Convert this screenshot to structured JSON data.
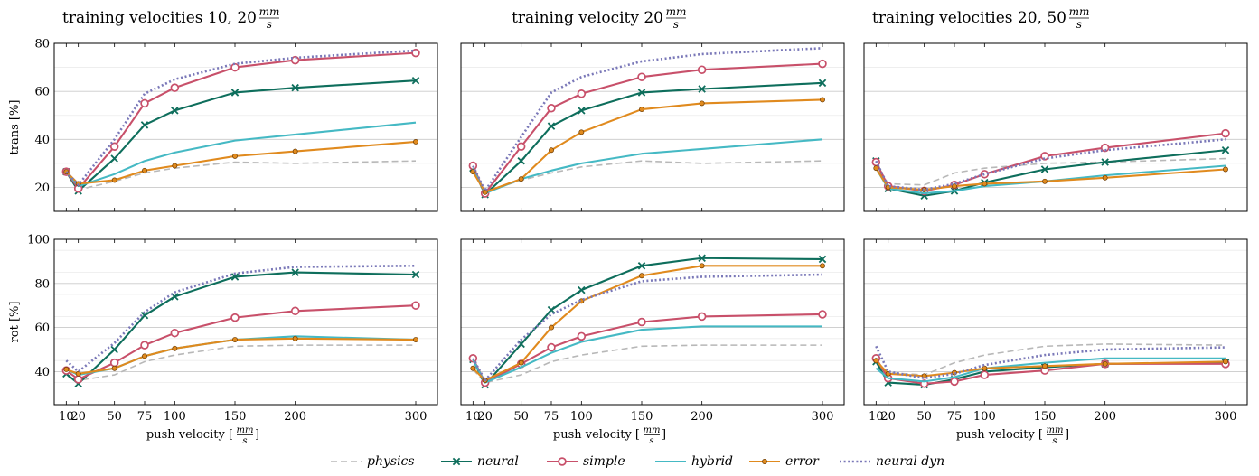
{
  "x_ticks": [
    10,
    20,
    50,
    75,
    100,
    150,
    200,
    300
  ],
  "x_label": "push velocity",
  "x_unit": {
    "num": "mm",
    "den": "s"
  },
  "column_titles": [
    {
      "text": "training velocities 10, 20",
      "num": "mm",
      "den": "s"
    },
    {
      "text": "training velocity 20",
      "num": "mm",
      "den": "s"
    },
    {
      "text": "training velocities 20, 50",
      "num": "mm",
      "den": "s"
    }
  ],
  "rows": [
    {
      "ylabel": "trans [%]",
      "ylim": [
        10,
        80
      ],
      "yticks": [
        20,
        40,
        60,
        80
      ]
    },
    {
      "ylabel": "rot [%]",
      "ylim": [
        25,
        100
      ],
      "yticks": [
        40,
        60,
        80,
        100
      ]
    }
  ],
  "legend": [
    {
      "name": "physics",
      "color": "#b8b8b8",
      "style": "dashed",
      "marker": "none"
    },
    {
      "name": "neural",
      "color": "#0e6e5c",
      "style": "solid",
      "marker": "x"
    },
    {
      "name": "simple",
      "color": "#c8506a",
      "style": "solid",
      "marker": "circle"
    },
    {
      "name": "hybrid",
      "color": "#45b9c4",
      "style": "solid",
      "marker": "none"
    },
    {
      "name": "error",
      "color": "#e08a1e",
      "style": "solid",
      "marker": "dot"
    },
    {
      "name": "neural dyn",
      "color": "#7a78b8",
      "style": "dotted",
      "marker": "none"
    }
  ],
  "chart_data": [
    {
      "type": "line",
      "panel": "trans-10-20",
      "x": [
        10,
        20,
        50,
        75,
        100,
        150,
        200,
        300
      ],
      "series": [
        {
          "name": "physics",
          "values": [
            26.5,
            19,
            22.5,
            26,
            28,
            30.5,
            30,
            31
          ]
        },
        {
          "name": "neural",
          "values": [
            26.5,
            18.5,
            32,
            46,
            52,
            59.5,
            61.5,
            64.5
          ]
        },
        {
          "name": "simple",
          "values": [
            26.5,
            19.5,
            37,
            55,
            61.5,
            70,
            73,
            76
          ]
        },
        {
          "name": "hybrid",
          "values": [
            26.5,
            20.5,
            25.5,
            31,
            34.5,
            39.5,
            42,
            47
          ]
        },
        {
          "name": "error",
          "values": [
            26.5,
            21.5,
            23,
            27,
            29,
            33,
            35,
            39
          ]
        },
        {
          "name": "neural dyn",
          "values": [
            26.5,
            21,
            40,
            59,
            65,
            71.5,
            74,
            77
          ]
        }
      ]
    },
    {
      "type": "line",
      "panel": "trans-20",
      "x": [
        10,
        20,
        50,
        75,
        100,
        150,
        200,
        300
      ],
      "series": [
        {
          "name": "physics",
          "values": [
            27,
            18,
            23,
            26,
            28.5,
            31,
            30,
            31
          ]
        },
        {
          "name": "neural",
          "values": [
            28,
            17,
            31,
            45.5,
            52,
            59.5,
            61,
            63.5
          ]
        },
        {
          "name": "simple",
          "values": [
            29,
            17.5,
            37,
            53,
            59,
            66,
            69,
            71.5
          ]
        },
        {
          "name": "hybrid",
          "values": [
            28,
            17.5,
            23.5,
            27,
            30,
            34,
            36,
            40
          ]
        },
        {
          "name": "error",
          "values": [
            26.5,
            18,
            23.5,
            35.5,
            43,
            52.5,
            55,
            56.5
          ]
        },
        {
          "name": "neural dyn",
          "values": [
            29,
            18.5,
            41,
            59.5,
            66,
            72.5,
            75.5,
            78
          ]
        }
      ]
    },
    {
      "type": "line",
      "panel": "trans-20-50",
      "x": [
        10,
        20,
        50,
        75,
        100,
        150,
        200,
        300
      ],
      "series": [
        {
          "name": "physics",
          "values": [
            30,
            21.5,
            21,
            26,
            28,
            30,
            30.5,
            32
          ]
        },
        {
          "name": "neural",
          "values": [
            31,
            19.5,
            16.5,
            18.5,
            22,
            27.5,
            30.5,
            35.5
          ]
        },
        {
          "name": "simple",
          "values": [
            30.5,
            20.5,
            18.5,
            21,
            25.5,
            33,
            36.5,
            42.5
          ]
        },
        {
          "name": "hybrid",
          "values": [
            28,
            19.5,
            17.5,
            18.5,
            20.5,
            22.5,
            25,
            29
          ]
        },
        {
          "name": "error",
          "values": [
            28,
            20,
            19,
            20.5,
            21.5,
            22.5,
            24,
            27.5
          ]
        },
        {
          "name": "neural dyn",
          "values": [
            31,
            20.5,
            19,
            21.5,
            25.5,
            32,
            35.5,
            40
          ]
        }
      ]
    },
    {
      "type": "line",
      "panel": "rot-10-20",
      "x": [
        10,
        20,
        50,
        75,
        100,
        150,
        200,
        300
      ],
      "series": [
        {
          "name": "physics",
          "values": [
            40.5,
            36,
            38.5,
            44.5,
            47.5,
            51.5,
            52,
            52
          ]
        },
        {
          "name": "neural",
          "values": [
            39,
            34.5,
            50,
            65.5,
            74,
            83,
            85,
            84
          ]
        },
        {
          "name": "simple",
          "values": [
            40.5,
            36.5,
            44,
            52,
            57.5,
            64.5,
            67.5,
            70
          ]
        },
        {
          "name": "hybrid",
          "values": [
            41,
            38.5,
            41.5,
            47,
            50.5,
            54.5,
            56,
            54.5
          ]
        },
        {
          "name": "error",
          "values": [
            41,
            39,
            41.5,
            47,
            50.5,
            54.5,
            55,
            54.5
          ]
        },
        {
          "name": "neural dyn",
          "values": [
            45,
            40,
            53,
            67,
            76,
            84.5,
            87.5,
            88
          ]
        }
      ]
    },
    {
      "type": "line",
      "panel": "rot-20",
      "x": [
        10,
        20,
        50,
        75,
        100,
        150,
        200,
        300
      ],
      "series": [
        {
          "name": "physics",
          "values": [
            41,
            35,
            38.5,
            44.5,
            47.5,
            51.5,
            52,
            52
          ]
        },
        {
          "name": "neural",
          "values": [
            45.5,
            34,
            52.5,
            68,
            77,
            88,
            91.5,
            91
          ]
        },
        {
          "name": "simple",
          "values": [
            46,
            35,
            43.5,
            51,
            56,
            62.5,
            65,
            66
          ]
        },
        {
          "name": "hybrid",
          "values": [
            45.5,
            35,
            42,
            48.5,
            53.5,
            59,
            60.5,
            60.5
          ]
        },
        {
          "name": "error",
          "values": [
            41.5,
            36,
            44,
            60,
            72,
            83.5,
            88,
            88
          ]
        },
        {
          "name": "neural dyn",
          "values": [
            46,
            36,
            54.5,
            66,
            72.5,
            81,
            83,
            84
          ]
        }
      ]
    },
    {
      "type": "line",
      "panel": "rot-20-50",
      "x": [
        10,
        20,
        50,
        75,
        100,
        150,
        200,
        300
      ],
      "series": [
        {
          "name": "physics",
          "values": [
            44.5,
            39.5,
            38.5,
            44,
            47.5,
            51.5,
            52.5,
            52
          ]
        },
        {
          "name": "neural",
          "values": [
            44.5,
            35,
            34,
            36.5,
            40,
            42,
            43.5,
            44
          ]
        },
        {
          "name": "simple",
          "values": [
            46,
            37,
            34.5,
            35.5,
            38.5,
            40.5,
            43.5,
            43.5
          ]
        },
        {
          "name": "hybrid",
          "values": [
            41.5,
            37,
            35.5,
            37.5,
            41.5,
            44,
            46,
            46
          ]
        },
        {
          "name": "error",
          "values": [
            45,
            39,
            38,
            39.5,
            41.5,
            42.5,
            43.5,
            44.5
          ]
        },
        {
          "name": "neural dyn",
          "values": [
            51.5,
            40,
            37,
            39,
            43,
            47.5,
            50,
            51
          ]
        }
      ]
    }
  ]
}
